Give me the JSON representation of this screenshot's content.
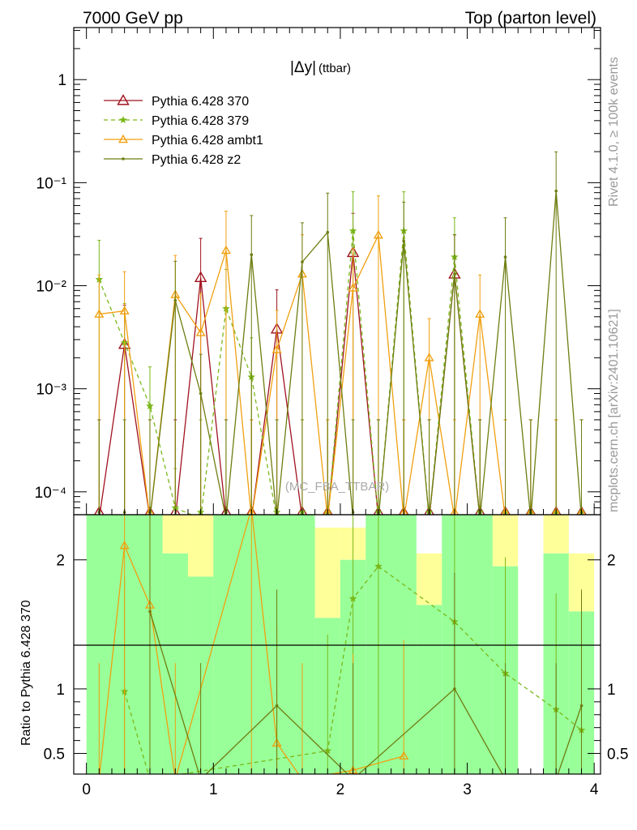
{
  "header": {
    "left": "7000 GeV pp",
    "right": "Top (parton level)"
  },
  "side_texts": {
    "rivet": "Rivet 4.1.0, ≥ 100k events",
    "mcplots": "mcplots.cern.ch [arXiv:2401.10621]"
  },
  "watermark": "(MC_FBA_TTBAR)",
  "colors": {
    "p370": "#a0121e",
    "p379": "#7ab81a",
    "ambt1": "#f0a010",
    "z2": "#6e7d10",
    "band_green": "#99ff99",
    "band_yellow": "#ffff99"
  },
  "chart_data": [
    {
      "type": "line",
      "title": "|Δy|",
      "title_sub": "(ttbar)",
      "yscale": "log",
      "xlim": [
        -0.1,
        4.05
      ],
      "ylim": [
        6e-05,
        3.2
      ],
      "x_ticks": [
        "0",
        "1",
        "2",
        "3",
        "4"
      ],
      "y_ticks": [
        {
          "value": 1,
          "label": "1"
        },
        {
          "value": 0.1,
          "label": "10⁻¹"
        },
        {
          "value": 0.01,
          "label": "10⁻²"
        },
        {
          "value": 0.001,
          "label": "10⁻³"
        },
        {
          "value": 0.0001,
          "label": "10⁻⁴"
        }
      ],
      "legend_position": "top-left",
      "x": [
        0.1,
        0.3,
        0.5,
        0.7,
        0.9,
        1.1,
        1.3,
        1.5,
        1.7,
        1.9,
        2.1,
        2.3,
        2.5,
        2.7,
        2.9,
        3.1,
        3.3,
        3.5,
        3.7,
        3.9
      ],
      "series": [
        {
          "name": "Pythia 6.428 370",
          "key": "p370",
          "marker": "triangle-open",
          "values": [
            0,
            0.0027,
            0,
            0,
            0.012,
            0,
            0,
            0.0038,
            0,
            0,
            0.021,
            0,
            0,
            0,
            0.013,
            0,
            0,
            0,
            0,
            0
          ]
        },
        {
          "name": "Pythia 6.428 379",
          "key": "p379",
          "marker": "star",
          "dashed": true,
          "values": [
            0.0115,
            0.0028,
            0.00068,
            7e-05,
            0,
            0.006,
            0.0013,
            0,
            0,
            0,
            0.034,
            0,
            0.034,
            0,
            0.019,
            0,
            0,
            0,
            0,
            0
          ]
        },
        {
          "name": "Pythia 6.428 ambt1",
          "key": "ambt1",
          "marker": "triangle-open-small",
          "values": [
            0.0053,
            0.0057,
            0,
            0.0082,
            0.0035,
            0.022,
            0,
            0.0024,
            0.013,
            0,
            0.0095,
            0.031,
            0,
            0.002,
            0,
            0.0053,
            0,
            0,
            0,
            0
          ]
        },
        {
          "name": "Pythia 6.428 z2",
          "key": "z2",
          "marker": "dot",
          "values": [
            0,
            0,
            0,
            0.0072,
            0.0009,
            0,
            0.02,
            0,
            0.017,
            0.033,
            0,
            0,
            0.027,
            0,
            0.013,
            0,
            0.019,
            0,
            0.083,
            0
          ]
        }
      ]
    },
    {
      "type": "line",
      "ylabel": "Ratio to Pythia 6.428 370",
      "xlim": [
        -0.1,
        4.05
      ],
      "ylim": [
        0.34,
        2.35
      ],
      "x_ticks": [
        "0",
        "1",
        "2",
        "3",
        "4"
      ],
      "y_ticks": [
        {
          "value": 0.5,
          "label": "0.5"
        },
        {
          "value": 1,
          "label": "1"
        },
        {
          "value": 2,
          "label": "2"
        }
      ],
      "bands": [
        {
          "x0": 0.0,
          "x1": 0.6,
          "yellow": [
            2.35,
            2.35
          ],
          "green": [
            2.35,
            0.34
          ]
        },
        {
          "x0": 0.6,
          "x1": 0.8,
          "yellow": [
            2.35,
            2.05
          ],
          "green": [
            2.05,
            0.34
          ]
        },
        {
          "x0": 0.8,
          "x1": 1.0,
          "yellow": [
            2.35,
            1.87
          ],
          "green": [
            1.87,
            0.34
          ]
        },
        {
          "x0": 1.0,
          "x1": 1.8,
          "yellow": [
            2.35,
            2.35
          ],
          "green": [
            2.35,
            0.34
          ]
        },
        {
          "x0": 1.8,
          "x1": 2.0,
          "yellow": [
            2.25,
            1.55
          ],
          "green": [
            1.55,
            0.34
          ]
        },
        {
          "x0": 2.0,
          "x1": 2.2,
          "yellow": [
            2.25,
            2.0
          ],
          "green": [
            2.0,
            0.34
          ]
        },
        {
          "x0": 2.2,
          "x1": 2.6,
          "yellow": [
            2.35,
            2.35
          ],
          "green": [
            2.35,
            0.34
          ]
        },
        {
          "x0": 2.6,
          "x1": 2.8,
          "yellow": [
            2.05,
            1.65
          ],
          "green": [
            1.65,
            0.34
          ]
        },
        {
          "x0": 2.8,
          "x1": 3.2,
          "yellow": [
            2.35,
            2.35
          ],
          "green": [
            2.35,
            0.34
          ]
        },
        {
          "x0": 3.2,
          "x1": 3.4,
          "yellow": [
            2.35,
            1.95
          ],
          "green": [
            1.95,
            0.34
          ]
        },
        {
          "x0": 3.6,
          "x1": 3.8,
          "yellow": [
            2.35,
            2.05
          ],
          "green": [
            2.05,
            0.34
          ]
        },
        {
          "x0": 3.8,
          "x1": 4.0,
          "yellow": [
            2.05,
            1.6
          ],
          "green": [
            1.6,
            0.34
          ]
        }
      ],
      "series": [
        {
          "name": "Pythia 6.428 379",
          "key": "p379",
          "marker": "star",
          "dashed": true,
          "x": [
            0.3,
            0.5,
            1.9,
            2.1,
            2.3,
            2.9,
            3.3,
            3.7,
            3.9
          ],
          "values": [
            0.98,
            0.3,
            0.52,
            1.7,
            1.95,
            1.52,
            1.12,
            0.84,
            0.68
          ]
        },
        {
          "name": "Pythia 6.428 ambt1",
          "key": "ambt1",
          "marker": "triangle-open-small",
          "x": [
            0.1,
            0.3,
            0.5,
            0.7,
            1.3,
            1.5,
            1.7,
            2.1,
            2.5
          ],
          "values": [
            0.3,
            2.11,
            1.65,
            0.3,
            2.4,
            0.58,
            0.3,
            0.37,
            0.48
          ]
        },
        {
          "name": "Pythia 6.428 z2",
          "key": "z2",
          "marker": "dot",
          "x": [
            0.5,
            0.9,
            1.5,
            2.1,
            2.9,
            3.3,
            3.7,
            3.9
          ],
          "values": [
            1.6,
            0.3,
            0.87,
            0.3,
            1.0,
            0.3,
            0.3,
            0.87
          ]
        }
      ]
    }
  ]
}
